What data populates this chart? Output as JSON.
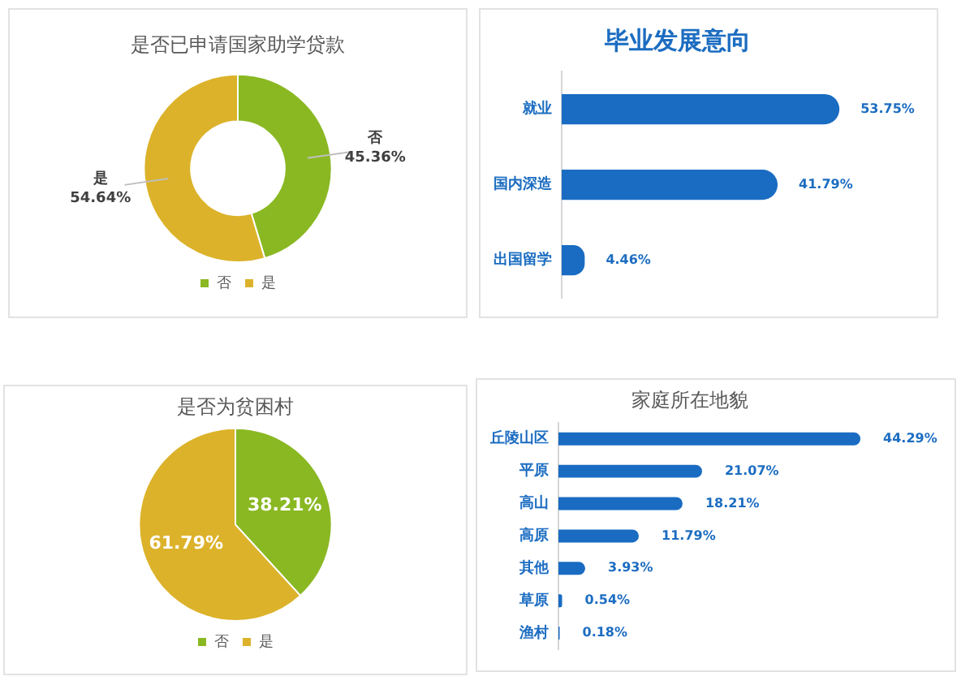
{
  "chart_data": [
    {
      "type": "donut",
      "title": "是否已申请国家助学贷款",
      "categories": [
        "否",
        "是"
      ],
      "values": [
        45.36,
        54.64
      ],
      "colors": [
        "#8ab823",
        "#dcb22a"
      ],
      "value_labels": [
        "45.36%",
        "54.64%"
      ],
      "legend": "bottom"
    },
    {
      "type": "bar",
      "orientation": "horizontal",
      "title": "毕业发展意向",
      "categories": [
        "就业",
        "国内深造",
        "出国留学"
      ],
      "values": [
        53.75,
        41.79,
        4.46
      ],
      "color": "#1a6cc2",
      "value_labels": [
        "53.75%",
        "41.79%",
        "4.46%"
      ],
      "tick_labels": "y"
    },
    {
      "type": "pie",
      "title": "是否为贫困村",
      "categories": [
        "否",
        "是"
      ],
      "values": [
        38.21,
        61.79
      ],
      "colors": [
        "#8ab823",
        "#dcb22a"
      ],
      "value_labels": [
        "38.21%",
        "61.79%"
      ],
      "legend": "bottom"
    },
    {
      "type": "bar",
      "orientation": "horizontal",
      "title": "家庭所在地貌",
      "categories": [
        "丘陵山区",
        "平原",
        "高山",
        "高原",
        "其他",
        "草原",
        "渔村"
      ],
      "values": [
        44.29,
        21.07,
        18.21,
        11.79,
        3.93,
        0.54,
        0.18
      ],
      "color": "#1a6cc2",
      "value_labels": [
        "44.29%",
        "21.07%",
        "18.21%",
        "11.79%",
        "3.93%",
        "0.54%",
        "0.18%"
      ],
      "tick_labels": "y"
    }
  ]
}
